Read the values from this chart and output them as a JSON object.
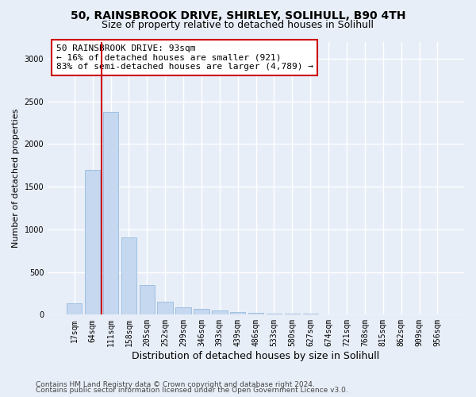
{
  "title1": "50, RAINSBROOK DRIVE, SHIRLEY, SOLIHULL, B90 4TH",
  "title2": "Size of property relative to detached houses in Solihull",
  "xlabel": "Distribution of detached houses by size in Solihull",
  "ylabel": "Number of detached properties",
  "categories": [
    "17sqm",
    "64sqm",
    "111sqm",
    "158sqm",
    "205sqm",
    "252sqm",
    "299sqm",
    "346sqm",
    "393sqm",
    "439sqm",
    "486sqm",
    "533sqm",
    "580sqm",
    "627sqm",
    "674sqm",
    "721sqm",
    "768sqm",
    "815sqm",
    "862sqm",
    "909sqm",
    "956sqm"
  ],
  "values": [
    130,
    1700,
    2380,
    910,
    350,
    155,
    90,
    70,
    45,
    35,
    20,
    15,
    10,
    8,
    5,
    3,
    2,
    2,
    1,
    1,
    0
  ],
  "bar_color": "#c5d8f0",
  "bar_edge_color": "#8ab4d8",
  "vline_color": "#cc0000",
  "vline_x": 1.5,
  "annotation_text": "50 RAINSBROOK DRIVE: 93sqm\n← 16% of detached houses are smaller (921)\n83% of semi-detached houses are larger (4,789) →",
  "annotation_box_facecolor": "white",
  "annotation_box_edgecolor": "#cc0000",
  "ylim": [
    0,
    3200
  ],
  "yticks": [
    0,
    500,
    1000,
    1500,
    2000,
    2500,
    3000
  ],
  "background_color": "#e8eef8",
  "grid_color": "#ffffff",
  "title1_fontsize": 10,
  "title2_fontsize": 9,
  "xlabel_fontsize": 9,
  "ylabel_fontsize": 8,
  "tick_fontsize": 7,
  "annotation_fontsize": 8,
  "footer_fontsize": 6.5,
  "footer_line1": "Contains HM Land Registry data © Crown copyright and database right 2024.",
  "footer_line2": "Contains public sector information licensed under the Open Government Licence v3.0."
}
